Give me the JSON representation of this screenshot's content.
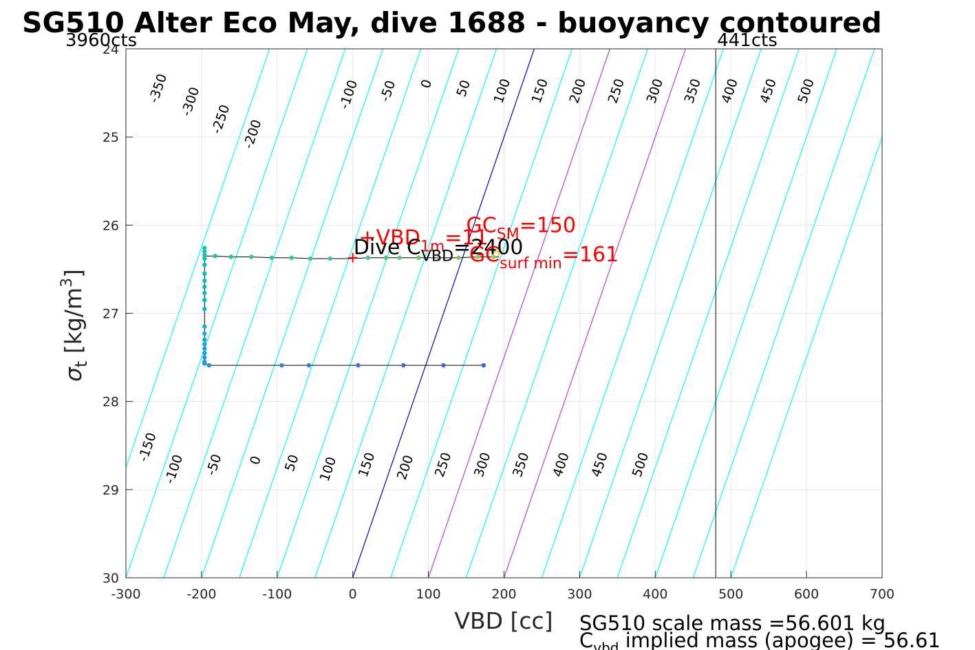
{
  "chart_data": {
    "type": "scatter",
    "title": "SG510 Alter Eco May, dive 1688 - buoyancy contoured",
    "xlabel": "VBD [cc]",
    "ylabel_main": "σ",
    "ylabel_sub": "t",
    "ylabel_units": "[kg/m",
    "ylabel_units_sup": "3",
    "ylabel_units_close": "]",
    "xlim": [
      -300,
      700
    ],
    "ylim": [
      24,
      30
    ],
    "y_reversed": true,
    "grid": true,
    "x_ticks": [
      -300,
      -200,
      -100,
      0,
      100,
      200,
      300,
      400,
      500,
      600,
      700
    ],
    "y_ticks": [
      24,
      25,
      26,
      27,
      28,
      29,
      30
    ],
    "vbd_count_min_label": "3960cts",
    "vbd_count_min_at": -300,
    "vbd_count_max_label": "441cts",
    "vbd_count_max_at": 480,
    "contour_slope_vbd_per_sigma": 40,
    "contours": [
      -350,
      -300,
      -250,
      -200,
      -150,
      -100,
      -50,
      0,
      50,
      100,
      150,
      200,
      250,
      300,
      350,
      400,
      450,
      500
    ],
    "highlight_contours": {
      "zero": 0,
      "magenta": [
        100,
        200
      ]
    },
    "contour_labels_upper": [
      {
        "label": "-350",
        "x": -257,
        "y": 24.45
      },
      {
        "label": "-300",
        "x": -214,
        "y": 24.6
      },
      {
        "label": "-250",
        "x": -174,
        "y": 24.8
      },
      {
        "label": "-200",
        "x": -132,
        "y": 24.97
      },
      {
        "label": "-100",
        "x": -5,
        "y": 24.52
      },
      {
        "label": "-50",
        "x": 47,
        "y": 24.48
      },
      {
        "label": "0",
        "x": 98,
        "y": 24.4
      },
      {
        "label": "50",
        "x": 147,
        "y": 24.45
      },
      {
        "label": "100",
        "x": 198,
        "y": 24.48
      },
      {
        "label": "150",
        "x": 248,
        "y": 24.48
      },
      {
        "label": "200",
        "x": 298,
        "y": 24.48
      },
      {
        "label": "250",
        "x": 349,
        "y": 24.48
      },
      {
        "label": "300",
        "x": 400,
        "y": 24.48
      },
      {
        "label": "350",
        "x": 450,
        "y": 24.48
      },
      {
        "label": "400",
        "x": 499,
        "y": 24.48
      },
      {
        "label": "450",
        "x": 550,
        "y": 24.48
      },
      {
        "label": "500",
        "x": 600,
        "y": 24.48
      }
    ],
    "contour_labels_lower": [
      {
        "label": "-150",
        "x": -271,
        "y": 28.52
      },
      {
        "label": "-100",
        "x": -236,
        "y": 28.77
      },
      {
        "label": "-50",
        "x": -183,
        "y": 28.72
      },
      {
        "label": "0",
        "x": -128,
        "y": 28.67
      },
      {
        "label": "50",
        "x": -80,
        "y": 28.7
      },
      {
        "label": "100",
        "x": -32,
        "y": 28.77
      },
      {
        "label": "150",
        "x": 19,
        "y": 28.72
      },
      {
        "label": "200",
        "x": 70,
        "y": 28.75
      },
      {
        "label": "250",
        "x": 120,
        "y": 28.72
      },
      {
        "label": "300",
        "x": 172,
        "y": 28.72
      },
      {
        "label": "350",
        "x": 223,
        "y": 28.72
      },
      {
        "label": "400",
        "x": 276,
        "y": 28.72
      },
      {
        "label": "450",
        "x": 327,
        "y": 28.72
      },
      {
        "label": "500",
        "x": 381,
        "y": 28.72
      }
    ],
    "dive_track": [
      [
        173,
        27.59
      ],
      [
        120,
        27.59
      ],
      [
        67,
        27.59
      ],
      [
        7,
        27.59
      ],
      [
        -58,
        27.59
      ],
      [
        -94,
        27.59
      ],
      [
        -190,
        27.59
      ],
      [
        -196,
        27.57
      ],
      [
        -196,
        27.5
      ],
      [
        -196,
        27.4
      ],
      [
        -196,
        27.3
      ],
      [
        -196,
        27.15
      ],
      [
        -196,
        26.95
      ],
      [
        -196,
        26.8
      ],
      [
        -196,
        26.65
      ],
      [
        -196,
        26.5
      ],
      [
        -196,
        26.4
      ],
      [
        -196,
        26.3
      ],
      [
        -196,
        26.25
      ],
      [
        -196,
        26.35
      ],
      [
        -182,
        26.35
      ],
      [
        -161,
        26.36
      ],
      [
        -134,
        26.36
      ],
      [
        -107,
        26.37
      ],
      [
        -81,
        26.37
      ],
      [
        -56,
        26.38
      ],
      [
        -30,
        26.38
      ],
      [
        -3,
        26.38
      ],
      [
        20,
        26.37
      ],
      [
        44,
        26.37
      ],
      [
        62,
        26.37
      ],
      [
        87,
        26.37
      ],
      [
        114,
        26.37
      ],
      [
        140,
        26.37
      ],
      [
        165,
        26.36
      ],
      [
        186,
        26.36
      ],
      [
        193,
        26.36
      ]
    ],
    "dive_points": [
      {
        "x": 173,
        "y": 27.59,
        "color": "#3d5cf5"
      },
      {
        "x": 120,
        "y": 27.59,
        "color": "#3d62f5"
      },
      {
        "x": 67,
        "y": 27.59,
        "color": "#3d68f5"
      },
      {
        "x": 7,
        "y": 27.59,
        "color": "#3d6ef3"
      },
      {
        "x": -58,
        "y": 27.59,
        "color": "#3a76f0"
      },
      {
        "x": -94,
        "y": 27.59,
        "color": "#3a7cef"
      },
      {
        "x": -190,
        "y": 27.59,
        "color": "#2c8ce6"
      },
      {
        "x": -196,
        "y": 27.57,
        "color": "#2396e0"
      },
      {
        "x": -196,
        "y": 27.55,
        "color": "#2098de"
      },
      {
        "x": -196,
        "y": 27.5,
        "color": "#1c9cdc"
      },
      {
        "x": -196,
        "y": 27.45,
        "color": "#1aa0da"
      },
      {
        "x": -196,
        "y": 27.4,
        "color": "#18a4d6"
      },
      {
        "x": -196,
        "y": 27.35,
        "color": "#16a8d2"
      },
      {
        "x": -196,
        "y": 27.3,
        "color": "#14acce"
      },
      {
        "x": -196,
        "y": 27.23,
        "color": "#12b0ca"
      },
      {
        "x": -196,
        "y": 27.15,
        "color": "#10b4c6"
      },
      {
        "x": -196,
        "y": 26.95,
        "color": "#0fb6c2"
      },
      {
        "x": -196,
        "y": 26.85,
        "color": "#0eb8be"
      },
      {
        "x": -196,
        "y": 26.77,
        "color": "#0dbabc"
      },
      {
        "x": -196,
        "y": 26.7,
        "color": "#0cbcba"
      },
      {
        "x": -196,
        "y": 26.63,
        "color": "#0cbdb8"
      },
      {
        "x": -196,
        "y": 26.55,
        "color": "#0cbeb6"
      },
      {
        "x": -196,
        "y": 26.45,
        "color": "#0cbfb2"
      },
      {
        "x": -196,
        "y": 26.38,
        "color": "#10c0ae"
      },
      {
        "x": -196,
        "y": 26.34,
        "color": "#14c1aa"
      },
      {
        "x": -196,
        "y": 26.3,
        "color": "#18c2a6"
      },
      {
        "x": -196,
        "y": 26.26,
        "color": "#1cc2a2"
      },
      {
        "x": -182,
        "y": 26.35,
        "color": "#22c39e"
      },
      {
        "x": -161,
        "y": 26.36,
        "color": "#28c49a"
      },
      {
        "x": -134,
        "y": 26.36,
        "color": "#2ec596"
      },
      {
        "x": -107,
        "y": 26.37,
        "color": "#34c592"
      },
      {
        "x": -81,
        "y": 26.37,
        "color": "#3ac68e"
      },
      {
        "x": -56,
        "y": 26.38,
        "color": "#40c68a"
      },
      {
        "x": -30,
        "y": 26.38,
        "color": "#46c686"
      },
      {
        "x": 20,
        "y": 26.37,
        "color": "#52c67e"
      },
      {
        "x": 44,
        "y": 26.37,
        "color": "#58c67a"
      },
      {
        "x": 62,
        "y": 26.37,
        "color": "#60c674"
      },
      {
        "x": 87,
        "y": 26.37,
        "color": "#6ac66e"
      },
      {
        "x": 114,
        "y": 26.37,
        "color": "#76c666"
      },
      {
        "x": 140,
        "y": 26.37,
        "color": "#84c65e"
      },
      {
        "x": 165,
        "y": 26.36,
        "color": "#96c454"
      },
      {
        "x": 186,
        "y": 26.36,
        "color": "#a8c44a"
      }
    ],
    "vbd_marker": {
      "x": 0,
      "y": 26.37,
      "symbol": "+",
      "color": "#ff0000"
    },
    "gc_marker": {
      "x": 193,
      "y": 26.3,
      "symbol": "+",
      "color": "#e8d020"
    },
    "annotations": {
      "vbd_1m": {
        "prefix": "+VBD",
        "sub": "1m",
        "value": "=11",
        "color": "#ff0000",
        "x": 8,
        "y": 26.22
      },
      "gc_sm": {
        "prefix": "GC",
        "sub": "SM",
        "value": "=150",
        "color": "#ff0000",
        "x": 150,
        "y": 26.08
      },
      "dive_cvbd": {
        "prefix": "Dive C",
        "sub": "VBD",
        "value": "=2400",
        "color": "#000000",
        "x": 1,
        "y": 26.33
      },
      "gc_surf_min": {
        "prefix": "GC",
        "sub": "surf min",
        "value": "=161",
        "color": "#ff0000",
        "x": 154,
        "y": 26.41
      }
    },
    "footnote_line1": "SG510 scale mass =56.601 kg",
    "footnote_line2_prefix": "C",
    "footnote_line2_sub": "vbd",
    "footnote_line2_rest": " implied mass (apogee) = 56.61"
  },
  "colors": {
    "contour": "#00ffff",
    "zero_contour": "#0000cd",
    "magenta_contour": "#c03ce0",
    "grid": "#e6e6e6",
    "axis": "#262626",
    "track": "#000000",
    "annotation_red": "#ff0000"
  }
}
